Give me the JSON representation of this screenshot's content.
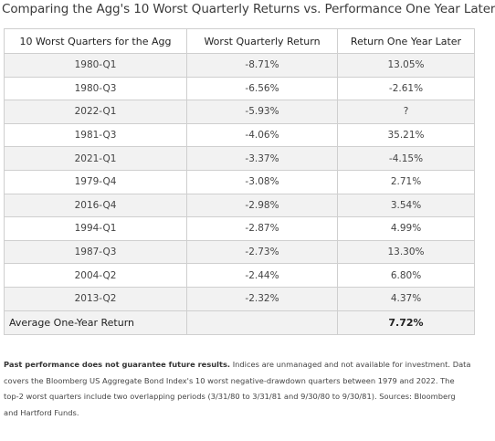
{
  "title": "Comparing the Agg's 10 Worst Quarterly Returns vs. Performance One Year Later",
  "table": {
    "headers": [
      "10 Worst Quarters for the Agg",
      "Worst Quarterly Return",
      "Return One Year Later"
    ],
    "rows": [
      {
        "quarter": "1980-Q1",
        "worst": "-8.71%",
        "later": "13.05%"
      },
      {
        "quarter": "1980-Q3",
        "worst": "-6.56%",
        "later": "-2.61%"
      },
      {
        "quarter": "2022-Q1",
        "worst": "-5.93%",
        "later": "?"
      },
      {
        "quarter": "1981-Q3",
        "worst": "-4.06%",
        "later": "35.21%"
      },
      {
        "quarter": "2021-Q1",
        "worst": "-3.37%",
        "later": "-4.15%"
      },
      {
        "quarter": "1979-Q4",
        "worst": "-3.08%",
        "later": "2.71%"
      },
      {
        "quarter": "2016-Q4",
        "worst": "-2.98%",
        "later": "3.54%"
      },
      {
        "quarter": "1994-Q1",
        "worst": "-2.87%",
        "later": "4.99%"
      },
      {
        "quarter": "1987-Q3",
        "worst": "-2.73%",
        "later": "13.30%"
      },
      {
        "quarter": "2004-Q2",
        "worst": "-2.44%",
        "later": "6.80%"
      },
      {
        "quarter": "2013-Q2",
        "worst": "-2.32%",
        "later": "4.37%"
      }
    ],
    "footer": {
      "label": "Average One-Year Return",
      "value": "7.72%"
    }
  },
  "footnote": {
    "bold": "Past performance does not guarantee future results.",
    "text": " Indices are unmanaged and not available for investment. Data covers the Bloomberg US Aggregate Bond Index's 10 worst negative-drawdown quarters between 1979 and 2022. The top-2 worst quarters include two overlapping periods (3/31/80 to 3/31/81 and 9/30/80 to 9/30/81). Sources: Bloomberg and Hartford Funds."
  }
}
